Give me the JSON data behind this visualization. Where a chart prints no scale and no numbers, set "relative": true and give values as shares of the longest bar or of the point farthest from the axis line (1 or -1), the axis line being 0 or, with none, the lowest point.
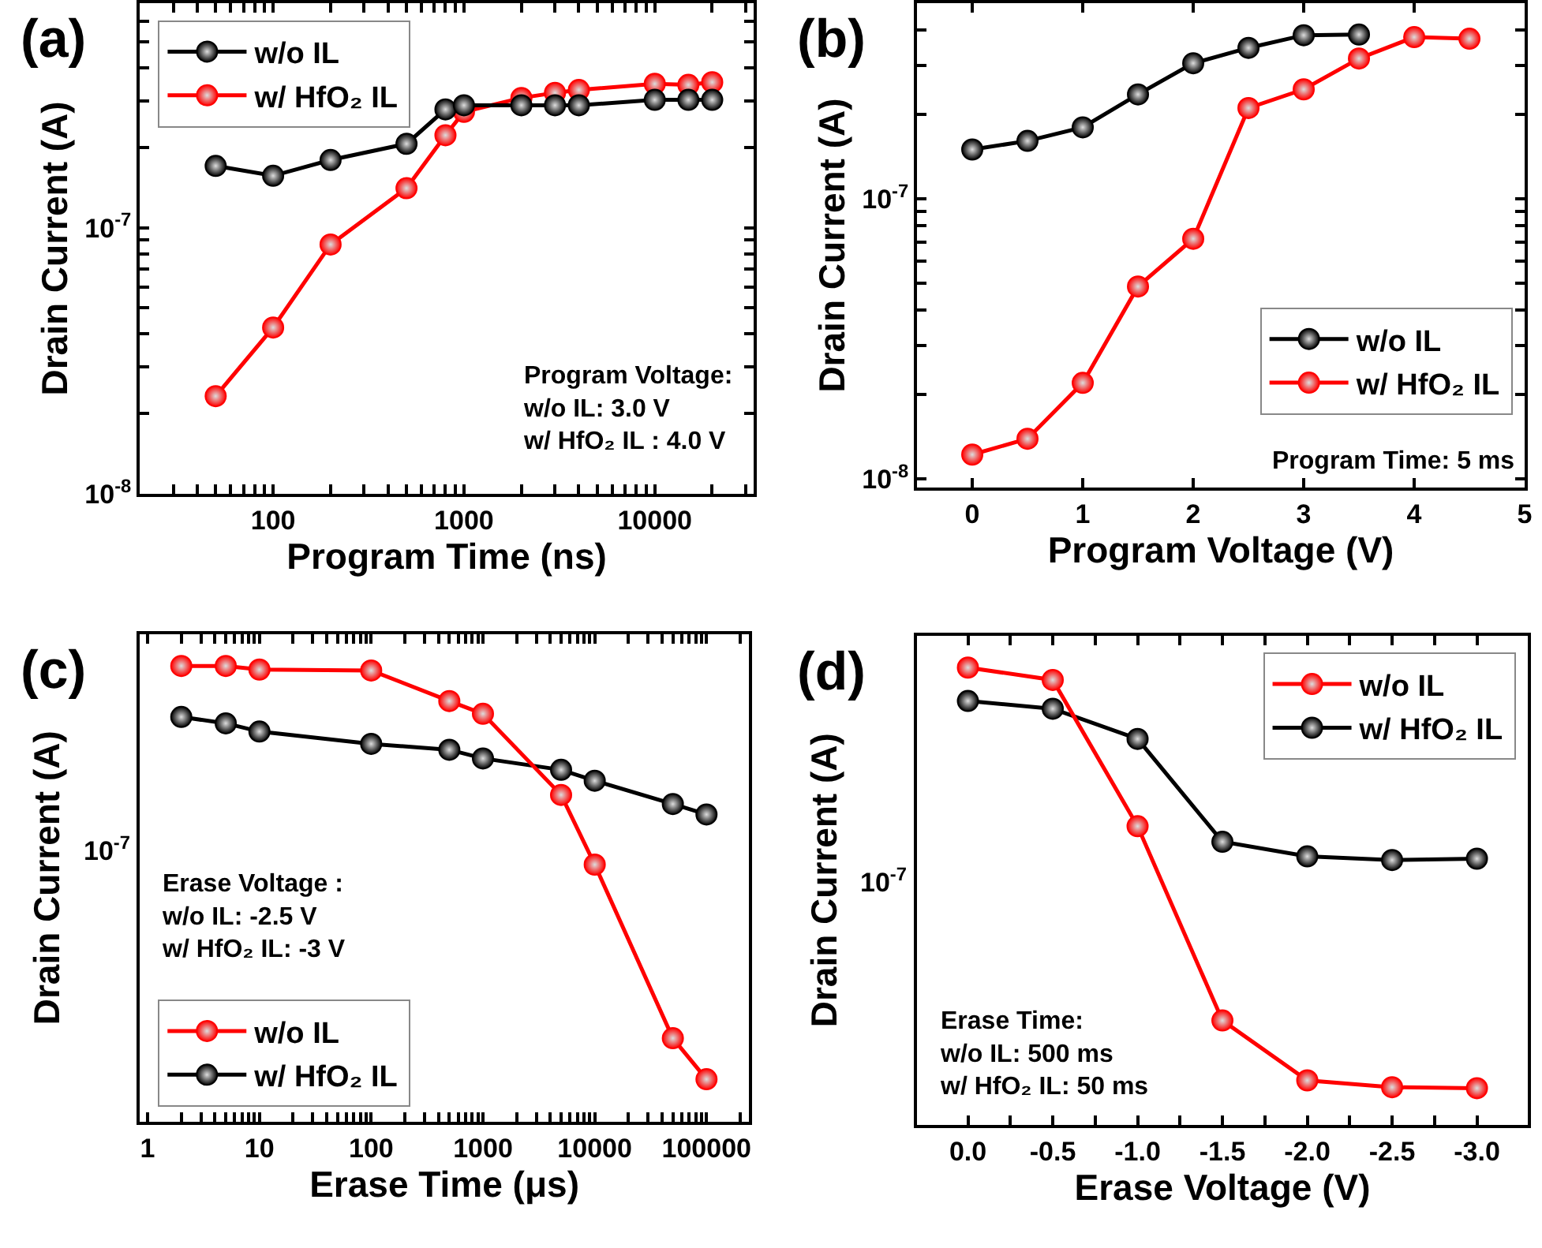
{
  "chart_data": [
    {
      "type": "line",
      "title": "(a)",
      "xlabel": "Program Time (ns)",
      "ylabel": "Drain Current (A)",
      "log": "xy",
      "legend": "top left",
      "marker": "circle",
      "line_style": "solid",
      "x": [
        50,
        100,
        200,
        500,
        800,
        1000,
        2000,
        3000,
        4000,
        10000,
        15000,
        20000
      ],
      "series": [
        {
          "name": "w/o IL",
          "color": "#000000",
          "values": [
            1.71e-07,
            1.57e-07,
            1.8e-07,
            2.07e-07,
            2.79e-07,
            2.89e-07,
            2.89e-07,
            2.89e-07,
            2.89e-07,
            3.03e-07,
            3.03e-07,
            3.03e-07
          ]
        },
        {
          "name": "w/ HfO₂ IL",
          "color": "#ff0000",
          "values": [
            2.33e-08,
            4.22e-08,
            8.66e-08,
            1.41e-07,
            2.23e-07,
            2.73e-07,
            3.08e-07,
            3.22e-07,
            3.3e-07,
            3.48e-07,
            3.45e-07,
            3.53e-07
          ]
        }
      ],
      "xlim": [
        20,
        33000
      ],
      "ylim": [
        1e-08,
        7e-07
      ],
      "xticks": [
        {
          "value": 20,
          "label": null
        },
        {
          "value": 30,
          "label": null
        },
        {
          "value": 40,
          "label": null
        },
        {
          "value": 50,
          "label": null
        },
        {
          "value": 60,
          "label": null
        },
        {
          "value": 70,
          "label": null
        },
        {
          "value": 80,
          "label": null
        },
        {
          "value": 90,
          "label": null
        },
        100,
        {
          "value": 200,
          "label": null
        },
        {
          "value": 300,
          "label": null
        },
        {
          "value": 400,
          "label": null
        },
        {
          "value": 500,
          "label": null
        },
        {
          "value": 600,
          "label": null
        },
        {
          "value": 700,
          "label": null
        },
        {
          "value": 800,
          "label": null
        },
        {
          "value": 900,
          "label": null
        },
        1000,
        {
          "value": 2000,
          "label": null
        },
        {
          "value": 3000,
          "label": null
        },
        {
          "value": 4000,
          "label": null
        },
        {
          "value": 5000,
          "label": null
        },
        {
          "value": 6000,
          "label": null
        },
        {
          "value": 7000,
          "label": null
        },
        {
          "value": 8000,
          "label": null
        },
        {
          "value": 9000,
          "label": null
        },
        10000,
        {
          "value": 20000,
          "label": null
        },
        {
          "value": 30000,
          "label": null
        }
      ],
      "yticks": [
        {
          "value": 1e-08,
          "label": "10$^{-8}$"
        },
        {
          "value": 2e-08,
          "label": null
        },
        {
          "value": 3e-08,
          "label": null
        },
        {
          "value": 4e-08,
          "label": null
        },
        {
          "value": 5e-08,
          "label": null
        },
        {
          "value": 6e-08,
          "label": null
        },
        {
          "value": 7e-08,
          "label": null
        },
        {
          "value": 8e-08,
          "label": null
        },
        {
          "value": 9e-08,
          "label": null
        },
        {
          "value": 1e-07,
          "label": "10$^{-7}$"
        },
        {
          "value": 2e-07,
          "label": null
        },
        {
          "value": 3e-07,
          "label": null
        },
        {
          "value": 4e-07,
          "label": null
        },
        {
          "value": 5e-07,
          "label": null
        },
        {
          "value": 6e-07,
          "label": null
        }
      ],
      "annotations": [
        "Program Voltage:",
        "w/o IL: 3.0 V",
        "w/ HfO₂ IL : 4.0 V"
      ]
    },
    {
      "type": "line",
      "title": "(b)",
      "xlabel": "Program Voltage (V)",
      "ylabel": "Drain Current (A)",
      "log": "y",
      "legend": "bottom right",
      "marker": "circle",
      "line_style": "solid",
      "series": [
        {
          "name": "w/o IL",
          "color": "#000000",
          "x": [
            0,
            0.5,
            1,
            1.5,
            2,
            2.5,
            3,
            3.5
          ],
          "values": [
            1.5e-07,
            1.61e-07,
            1.8e-07,
            2.36e-07,
            3.05e-07,
            3.46e-07,
            3.84e-07,
            3.86e-07
          ]
        },
        {
          "name": "w/ HfO₂ IL",
          "color": "#ff0000",
          "x": [
            0,
            0.5,
            1,
            1.5,
            2,
            2.5,
            3,
            3.5,
            4,
            4.5
          ],
          "values": [
            1.22e-08,
            1.39e-08,
            2.2e-08,
            4.86e-08,
            7.2e-08,
            2.11e-07,
            2.46e-07,
            3.17e-07,
            3.78e-07,
            3.73e-07
          ]
        }
      ],
      "xlim": [
        -0.5,
        5
      ],
      "ylim": [
        9.3e-09,
        5e-07
      ],
      "xticks": [
        0,
        1,
        2,
        3,
        4,
        5
      ],
      "yticks": [
        {
          "value": 1e-08,
          "label": "10$^{-8}$"
        },
        {
          "value": 2e-08,
          "label": null
        },
        {
          "value": 3e-08,
          "label": null
        },
        {
          "value": 4e-08,
          "label": null
        },
        {
          "value": 5e-08,
          "label": null
        },
        {
          "value": 6e-08,
          "label": null
        },
        {
          "value": 7e-08,
          "label": null
        },
        {
          "value": 8e-08,
          "label": null
        },
        {
          "value": 9e-08,
          "label": null
        },
        {
          "value": 1e-07,
          "label": "10$^{-7}$"
        },
        {
          "value": 2e-07,
          "label": null
        },
        {
          "value": 3e-07,
          "label": null
        },
        {
          "value": 4e-07,
          "label": null
        }
      ],
      "annotations": [
        "Program Time: 5 ms"
      ]
    },
    {
      "type": "line",
      "title": "(c)",
      "xlabel": "Erase Time (μs)",
      "ylabel": "Drain Current (A)",
      "log": "x",
      "relative": true,
      "legend": "bottom left",
      "marker": "circle",
      "line_style": "solid",
      "x": [
        2,
        5,
        10,
        100,
        500,
        1000,
        5000,
        10000,
        50000,
        100000
      ],
      "series": [
        {
          "name": "w/o IL",
          "color": "#ff0000",
          "values": [
            1,
            1,
            0.992,
            0.99,
            0.923,
            0.895,
            0.717,
            0.564,
            0.183,
            0.093
          ]
        },
        {
          "name": "w/ HfO₂ IL",
          "color": "#000000",
          "values": [
            0.888,
            0.874,
            0.856,
            0.829,
            0.816,
            0.797,
            0.772,
            0.748,
            0.697,
            0.674
          ]
        }
      ],
      "xlim": [
        0.85,
        240000
      ],
      "xticks": [
        1,
        {
          "value": 2,
          "label": null
        },
        {
          "value": 3,
          "label": null
        },
        {
          "value": 4,
          "label": null
        },
        {
          "value": 5,
          "label": null
        },
        {
          "value": 6,
          "label": null
        },
        {
          "value": 7,
          "label": null
        },
        {
          "value": 8,
          "label": null
        },
        {
          "value": 9,
          "label": null
        },
        10,
        {
          "value": 20,
          "label": null
        },
        {
          "value": 30,
          "label": null
        },
        {
          "value": 40,
          "label": null
        },
        {
          "value": 50,
          "label": null
        },
        {
          "value": 60,
          "label": null
        },
        {
          "value": 70,
          "label": null
        },
        {
          "value": 80,
          "label": null
        },
        {
          "value": 90,
          "label": null
        },
        100,
        {
          "value": 200,
          "label": null
        },
        {
          "value": 300,
          "label": null
        },
        {
          "value": 400,
          "label": null
        },
        {
          "value": 500,
          "label": null
        },
        {
          "value": 600,
          "label": null
        },
        {
          "value": 700,
          "label": null
        },
        {
          "value": 800,
          "label": null
        },
        {
          "value": 900,
          "label": null
        },
        1000,
        {
          "value": 2000,
          "label": null
        },
        {
          "value": 3000,
          "label": null
        },
        {
          "value": 4000,
          "label": null
        },
        {
          "value": 5000,
          "label": null
        },
        {
          "value": 6000,
          "label": null
        },
        {
          "value": 7000,
          "label": null
        },
        {
          "value": 8000,
          "label": null
        },
        {
          "value": 9000,
          "label": null
        },
        10000,
        {
          "value": 20000,
          "label": null
        },
        {
          "value": 30000,
          "label": null
        },
        {
          "value": 40000,
          "label": null
        },
        {
          "value": 50000,
          "label": null
        },
        {
          "value": 60000,
          "label": null
        },
        {
          "value": 70000,
          "label": null
        },
        {
          "value": 80000,
          "label": null
        },
        {
          "value": 90000,
          "label": null
        },
        100000,
        {
          "value": 200000,
          "label": null
        }
      ],
      "annotations": [
        "10$^{-7}$",
        "Erase Voltage :",
        "w/o IL: -2.5 V",
        "w/ HfO₂ IL: -3 V"
      ]
    },
    {
      "type": "line",
      "title": "(d)",
      "xlabel": "Erase Voltage (V)",
      "ylabel": "Drain Current (A)",
      "relative": true,
      "legend": "top right",
      "marker": "circle",
      "line_style": "solid",
      "x": [
        0,
        -0.5,
        -1,
        -1.5,
        -2,
        -2.5,
        -3
      ],
      "series": [
        {
          "name": "w/o IL",
          "color": "#ff0000",
          "values": [
            1,
            0.973,
            0.653,
            0.228,
            0.097,
            0.082,
            0.08
          ]
        },
        {
          "name": "w/ HfO₂ IL",
          "color": "#000000",
          "values": [
            0.927,
            0.91,
            0.844,
            0.619,
            0.587,
            0.579,
            0.582
          ]
        }
      ],
      "xlim": [
        0.3,
        -3.3
      ],
      "xticks": [
        {
          "value": 0,
          "label": "0.0"
        },
        {
          "value": -0.25,
          "label": null
        },
        -0.5,
        {
          "value": -0.75,
          "label": null
        },
        {
          "value": -1,
          "label": "-1.0"
        },
        {
          "value": -1.25,
          "label": null
        },
        -1.5,
        {
          "value": -1.75,
          "label": null
        },
        {
          "value": -2,
          "label": "-2.0"
        },
        {
          "value": -2.25,
          "label": null
        },
        -2.5,
        {
          "value": -2.75,
          "label": null
        },
        {
          "value": -3,
          "label": "-3.0"
        }
      ],
      "annotations": [
        "10$^{-7}$",
        "Erase Time:",
        "w/o IL: 500 ms",
        "w/ HfO₂ IL: 50 ms"
      ]
    }
  ]
}
